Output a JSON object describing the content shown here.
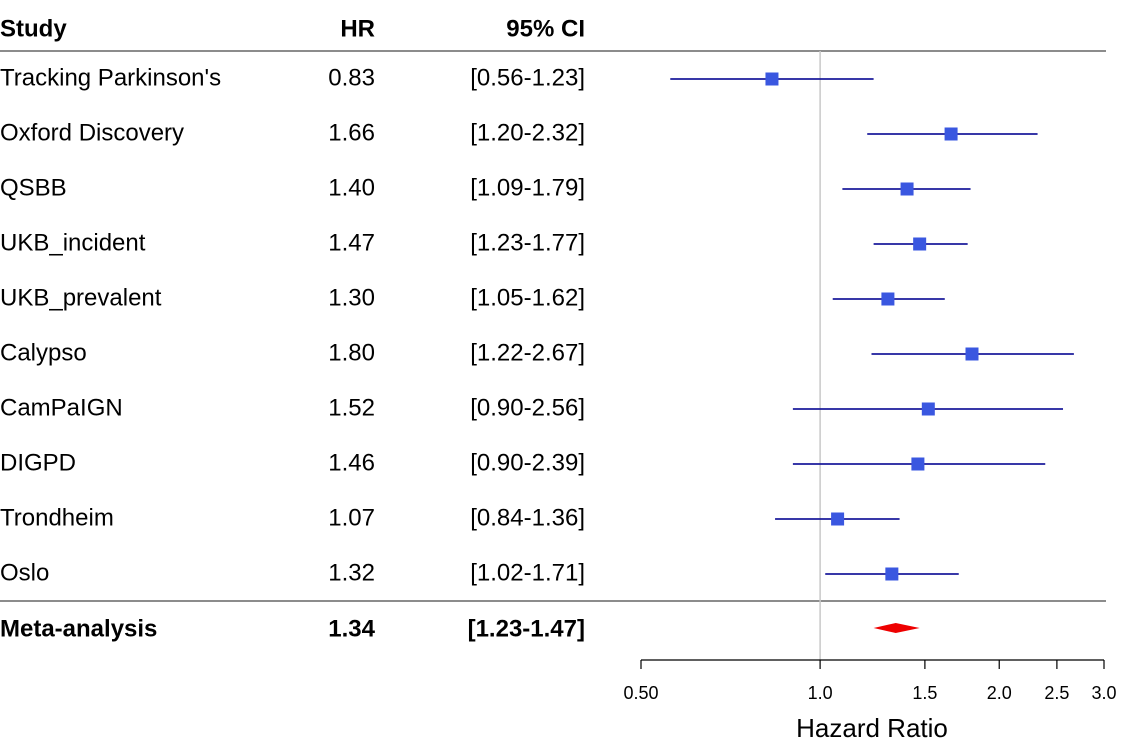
{
  "chart_data": {
    "type": "forest",
    "columns": [
      "Study",
      "HR",
      "95% CI"
    ],
    "studies": [
      "Tracking Parkinson's",
      "Oxford Discovery",
      "QSBB",
      "UKB_incident",
      "UKB_prevalent",
      "Calypso",
      "CamPaIGN",
      "DIGPD",
      "Trondheim",
      "Oslo"
    ],
    "values": [
      0.83,
      1.66,
      1.4,
      1.47,
      1.3,
      1.8,
      1.52,
      1.46,
      1.07,
      1.32
    ],
    "value_labels": [
      "0.83",
      "1.66",
      "1.40",
      "1.47",
      "1.30",
      "1.80",
      "1.52",
      "1.46",
      "1.07",
      "1.32"
    ],
    "lower": [
      0.56,
      1.2,
      1.09,
      1.23,
      1.05,
      1.22,
      0.9,
      0.9,
      0.84,
      1.02
    ],
    "upper": [
      1.23,
      2.32,
      1.79,
      1.77,
      1.62,
      2.67,
      2.56,
      2.39,
      1.36,
      1.71
    ],
    "ci_labels": [
      "[0.56-1.23]",
      "[1.20-2.32]",
      "[1.09-1.79]",
      "[1.23-1.77]",
      "[1.05-1.62]",
      "[1.22-2.67]",
      "[0.90-2.56]",
      "[0.90-2.39]",
      "[0.84-1.36]",
      "[1.02-1.71]"
    ],
    "color": "#3a57e0",
    "ci_color": "#1c1c9c",
    "summary": {
      "name": "Meta-analysis",
      "value": 1.34,
      "value_label": "1.34",
      "lower": 1.23,
      "upper": 1.47,
      "ci_label": "[1.23-1.47]",
      "color": "#ee0000"
    },
    "xscale": "log",
    "xlim": [
      0.5,
      3.0
    ],
    "xticks": [
      {
        "value": 0.5,
        "label": "0.50"
      },
      {
        "value": 1,
        "label": "1.0"
      },
      1.5,
      {
        "value": 2,
        "label": "2.0"
      },
      2.5,
      {
        "value": 3,
        "label": "3.0"
      }
    ],
    "ref_line": 1,
    "xlabel": "Hazard Ratio"
  }
}
